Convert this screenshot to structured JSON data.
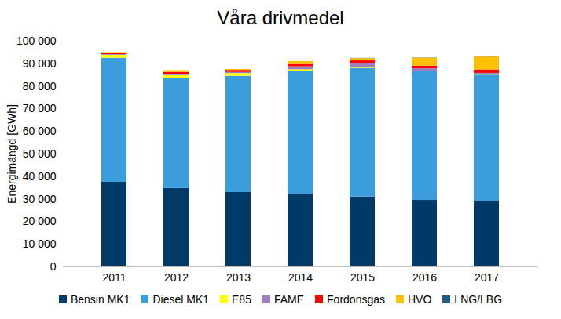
{
  "chart_data": {
    "type": "bar",
    "title": "Våra drivmedel",
    "stacked": true,
    "grid": false,
    "legend": "bottom",
    "y_label": "Energimängd [GWh]",
    "categories": [
      "2011",
      "2012",
      "2013",
      "2014",
      "2015",
      "2016",
      "2017"
    ],
    "ylim": [
      0,
      100000
    ],
    "yticks": [
      0,
      {
        "value": 10000,
        "label": "10 000"
      },
      {
        "value": 20000,
        "label": "20 000"
      },
      {
        "value": 30000,
        "label": "30 000"
      },
      {
        "value": 40000,
        "label": "40 000"
      },
      {
        "value": 50000,
        "label": "50 000"
      },
      {
        "value": 60000,
        "label": "60 000"
      },
      {
        "value": 70000,
        "label": "70 000"
      },
      {
        "value": 80000,
        "label": "80 000"
      },
      {
        "value": 90000,
        "label": "90 000"
      },
      {
        "value": 100000,
        "label": "100 000"
      }
    ],
    "series": [
      {
        "name": "Bensin MK1",
        "color": "#003a68",
        "values": [
          37500,
          34800,
          33000,
          32000,
          31000,
          29500,
          29000
        ]
      },
      {
        "name": "Diesel MK1",
        "color": "#3c9ddc",
        "values": [
          55000,
          48700,
          51500,
          54800,
          57000,
          57000,
          56000
        ]
      },
      {
        "name": "E85",
        "color": "#ffff00",
        "values": [
          1300,
          1300,
          1200,
          600,
          300,
          300,
          200
        ]
      },
      {
        "name": "FAME",
        "color": "#9b7fbf",
        "values": [
          300,
          500,
          500,
          1300,
          1800,
          1000,
          600
        ]
      },
      {
        "name": "Fordonsgas",
        "color": "#ff0000",
        "values": [
          500,
          900,
          900,
          1000,
          1200,
          1200,
          1500
        ]
      },
      {
        "name": "HVO",
        "color": "#ffc000",
        "values": [
          400,
          800,
          400,
          1300,
          1000,
          3500,
          5700
        ]
      },
      {
        "name": "LNG/LBG",
        "color": "#1f5c84",
        "values": [
          0,
          0,
          0,
          0,
          100,
          100,
          100
        ]
      }
    ]
  }
}
